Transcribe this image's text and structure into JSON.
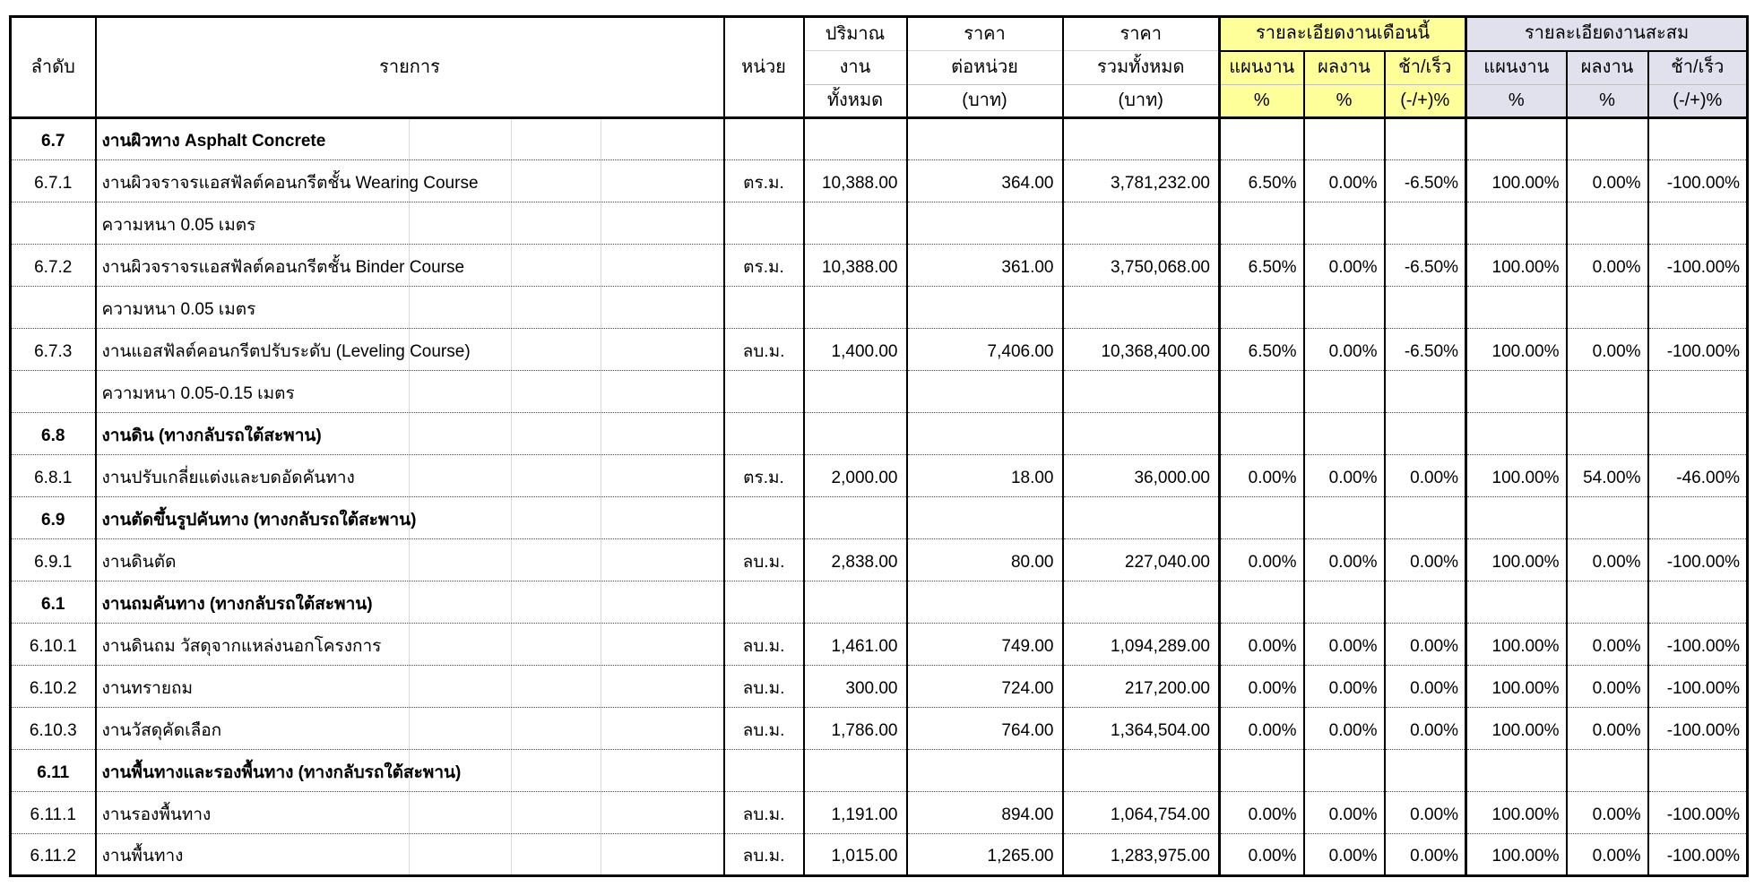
{
  "header": {
    "col_no": "ลำดับ",
    "col_item": "รายการ",
    "col_unit": "หน่วย",
    "col_qty": [
      "ปริมาณ",
      "งาน",
      "ทั้งหมด"
    ],
    "col_unit_price": [
      "ราคา",
      "ต่อหน่วย",
      "(บาท)"
    ],
    "col_total_price": [
      "ราคา",
      "รวมทั้งหมด",
      "(บาท)"
    ],
    "group_month": "รายละเอียดงานเดือนนี้",
    "group_cumulative": "รายละเอียดงานสะสม",
    "sub_plan": "แผนงาน",
    "sub_actual": "ผลงาน",
    "sub_diff": "ช้า/เร็ว",
    "pct": "%",
    "diff_pct": "(-/+)%"
  },
  "colors": {
    "month_group_bg": "#FFFF99",
    "cumulative_group_bg": "#E1E1ED",
    "border": "#000000"
  },
  "rows": [
    {
      "type": "section",
      "no": "6.7",
      "item": "งานผิวทาง Asphalt Concrete"
    },
    {
      "type": "item",
      "no": "6.7.1",
      "item": "งานผิวจราจรแอสฟัลต์คอนกรีตชั้น Wearing Course",
      "unit": "ตร.ม.",
      "qty": "10,388.00",
      "unit_price": "364.00",
      "total_price": "3,781,232.00",
      "m_plan": "6.50%",
      "m_actual": "0.00%",
      "m_diff": "-6.50%",
      "c_plan": "100.00%",
      "c_actual": "0.00%",
      "c_diff": "-100.00%"
    },
    {
      "type": "cont",
      "item": "ความหนา 0.05 เมตร"
    },
    {
      "type": "item",
      "no": "6.7.2",
      "item": "งานผิวจราจรแอสฟัลต์คอนกรีตชั้น Binder Course",
      "unit": "ตร.ม.",
      "qty": "10,388.00",
      "unit_price": "361.00",
      "total_price": "3,750,068.00",
      "m_plan": "6.50%",
      "m_actual": "0.00%",
      "m_diff": "-6.50%",
      "c_plan": "100.00%",
      "c_actual": "0.00%",
      "c_diff": "-100.00%"
    },
    {
      "type": "cont",
      "item": "ความหนา 0.05 เมตร"
    },
    {
      "type": "item",
      "no": "6.7.3",
      "item": "งานแอสฟัลต์คอนกรีตปรับระดับ (Leveling Course)",
      "unit": "ลบ.ม.",
      "qty": "1,400.00",
      "unit_price": "7,406.00",
      "total_price": "10,368,400.00",
      "m_plan": "6.50%",
      "m_actual": "0.00%",
      "m_diff": "-6.50%",
      "c_plan": "100.00%",
      "c_actual": "0.00%",
      "c_diff": "-100.00%"
    },
    {
      "type": "cont",
      "item": "ความหนา 0.05-0.15 เมตร"
    },
    {
      "type": "section",
      "no": "6.8",
      "item": "งานดิน (ทางกลับรถใต้สะพาน)"
    },
    {
      "type": "item",
      "no": "6.8.1",
      "item": "งานปรับเกลี่ยแต่งและบดอัดคันทาง",
      "unit": "ตร.ม.",
      "qty": "2,000.00",
      "unit_price": "18.00",
      "total_price": "36,000.00",
      "m_plan": "0.00%",
      "m_actual": "0.00%",
      "m_diff": "0.00%",
      "c_plan": "100.00%",
      "c_actual": "54.00%",
      "c_diff": "-46.00%"
    },
    {
      "type": "section",
      "no": "6.9",
      "item": "งานตัดขึ้นรูปคันทาง (ทางกลับรถใต้สะพาน)"
    },
    {
      "type": "item",
      "no": "6.9.1",
      "item": "งานดินตัด",
      "unit": "ลบ.ม.",
      "qty": "2,838.00",
      "unit_price": "80.00",
      "total_price": "227,040.00",
      "m_plan": "0.00%",
      "m_actual": "0.00%",
      "m_diff": "0.00%",
      "c_plan": "100.00%",
      "c_actual": "0.00%",
      "c_diff": "-100.00%"
    },
    {
      "type": "section",
      "no": "6.1",
      "item": "งานถมคันทาง (ทางกลับรถใต้สะพาน)"
    },
    {
      "type": "item",
      "no": "6.10.1",
      "item": "งานดินถม วัสดุจากแหล่งนอกโครงการ",
      "unit": "ลบ.ม.",
      "qty": "1,461.00",
      "unit_price": "749.00",
      "total_price": "1,094,289.00",
      "m_plan": "0.00%",
      "m_actual": "0.00%",
      "m_diff": "0.00%",
      "c_plan": "100.00%",
      "c_actual": "0.00%",
      "c_diff": "-100.00%"
    },
    {
      "type": "item",
      "no": "6.10.2",
      "item": "งานทรายถม",
      "unit": "ลบ.ม.",
      "qty": "300.00",
      "unit_price": "724.00",
      "total_price": "217,200.00",
      "m_plan": "0.00%",
      "m_actual": "0.00%",
      "m_diff": "0.00%",
      "c_plan": "100.00%",
      "c_actual": "0.00%",
      "c_diff": "-100.00%"
    },
    {
      "type": "item",
      "no": "6.10.3",
      "item": "งานวัสดุคัดเลือก",
      "unit": "ลบ.ม.",
      "qty": "1,786.00",
      "unit_price": "764.00",
      "total_price": "1,364,504.00",
      "m_plan": "0.00%",
      "m_actual": "0.00%",
      "m_diff": "0.00%",
      "c_plan": "100.00%",
      "c_actual": "0.00%",
      "c_diff": "-100.00%"
    },
    {
      "type": "section",
      "no": "6.11",
      "item": "งานพื้นทางและรองพื้นทาง (ทางกลับรถใต้สะพาน)"
    },
    {
      "type": "item",
      "no": "6.11.1",
      "item": "งานรองพื้นทาง",
      "unit": "ลบ.ม.",
      "qty": "1,191.00",
      "unit_price": "894.00",
      "total_price": "1,064,754.00",
      "m_plan": "0.00%",
      "m_actual": "0.00%",
      "m_diff": "0.00%",
      "c_plan": "100.00%",
      "c_actual": "0.00%",
      "c_diff": "-100.00%"
    },
    {
      "type": "item",
      "no": "6.11.2",
      "item": "งานพื้นทาง",
      "unit": "ลบ.ม.",
      "qty": "1,015.00",
      "unit_price": "1,265.00",
      "total_price": "1,283,975.00",
      "m_plan": "0.00%",
      "m_actual": "0.00%",
      "m_diff": "0.00%",
      "c_plan": "100.00%",
      "c_actual": "0.00%",
      "c_diff": "-100.00%"
    }
  ]
}
